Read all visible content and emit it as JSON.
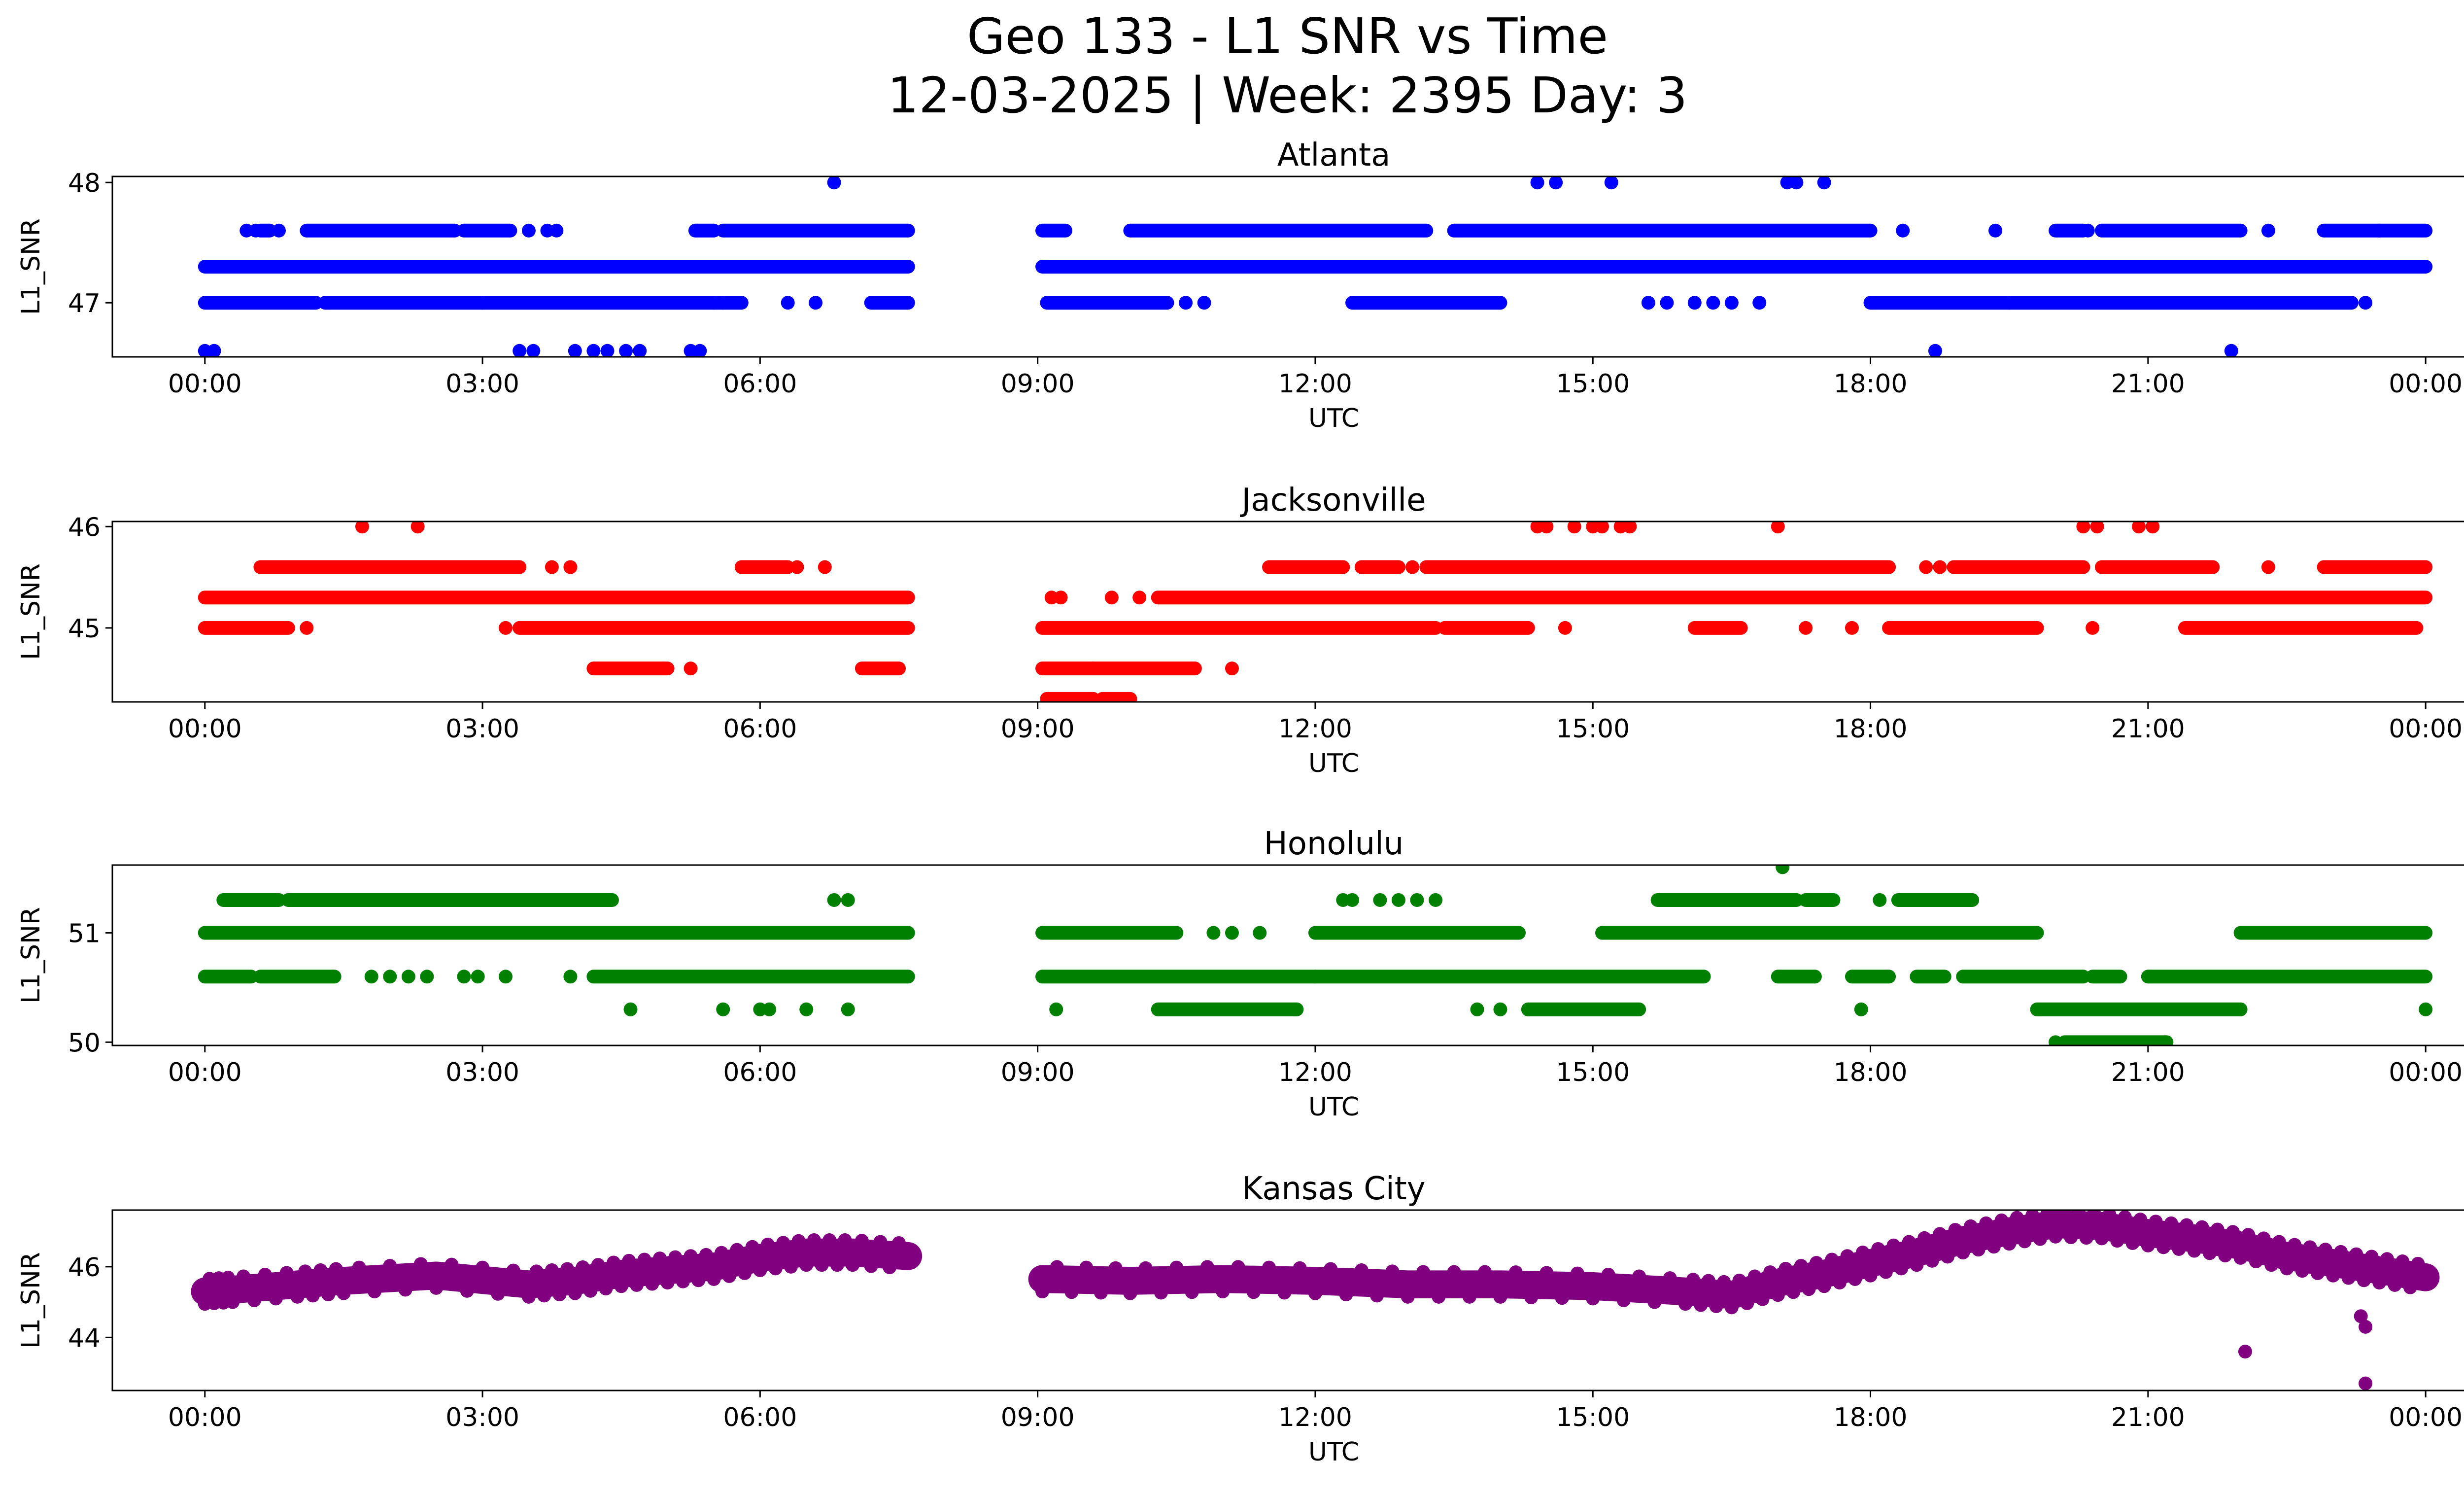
{
  "title_line1": "Geo 133 - L1 SNR vs Time",
  "title_line2": "12-03-2025 | Week: 2395 Day: 3",
  "x_axis": {
    "label": "UTC",
    "range_hours": [
      -1.0,
      25.4
    ],
    "ticks": [
      {
        "h": 0,
        "label": "00:00"
      },
      {
        "h": 3,
        "label": "03:00"
      },
      {
        "h": 6,
        "label": "06:00"
      },
      {
        "h": 9,
        "label": "09:00"
      },
      {
        "h": 12,
        "label": "12:00"
      },
      {
        "h": 15,
        "label": "15:00"
      },
      {
        "h": 18,
        "label": "18:00"
      },
      {
        "h": 21,
        "label": "21:00"
      },
      {
        "h": 24,
        "label": "00:00"
      }
    ]
  },
  "chart_data": [
    {
      "type": "scatter",
      "title": "Atlanta",
      "xlabel": "UTC",
      "ylabel": "L1_SNR",
      "color": "#0000ff",
      "ylim": [
        46.55,
        48.05
      ],
      "yticks": [
        47,
        48
      ],
      "spans": [
        {
          "level": 47.3,
          "ranges": [
            [
              0.0,
              7.6
            ],
            [
              9.05,
              24.0
            ]
          ]
        },
        {
          "level": 47.0,
          "ranges": [
            [
              0.0,
              1.2
            ],
            [
              1.3,
              3.0
            ],
            [
              3.0,
              5.5
            ],
            [
              5.5,
              5.8
            ],
            [
              7.2,
              7.6
            ],
            [
              9.1,
              10.4
            ],
            [
              12.4,
              14.0
            ],
            [
              18.0,
              19.5
            ],
            [
              19.5,
              23.2
            ]
          ]
        },
        {
          "level": 47.6,
          "ranges": [
            [
              0.6,
              0.7
            ],
            [
              1.1,
              2.7
            ],
            [
              2.8,
              3.3
            ],
            [
              5.3,
              5.5
            ],
            [
              5.6,
              7.6
            ],
            [
              9.05,
              9.3
            ],
            [
              10.0,
              13.2
            ],
            [
              13.5,
              18.0
            ],
            [
              20.0,
              20.3
            ],
            [
              20.5,
              22.0
            ],
            [
              22.9,
              23.5
            ],
            [
              23.5,
              24.0
            ]
          ]
        }
      ],
      "points": [
        [
          0.0,
          46.6
        ],
        [
          0.1,
          46.6
        ],
        [
          3.4,
          46.6
        ],
        [
          3.55,
          46.6
        ],
        [
          4.0,
          46.6
        ],
        [
          4.2,
          46.6
        ],
        [
          4.35,
          46.6
        ],
        [
          4.55,
          46.6
        ],
        [
          4.7,
          46.6
        ],
        [
          5.25,
          46.6
        ],
        [
          5.35,
          46.6
        ],
        [
          18.7,
          46.6
        ],
        [
          21.9,
          46.6
        ],
        [
          6.8,
          48.0
        ],
        [
          14.4,
          48.0
        ],
        [
          14.6,
          48.0
        ],
        [
          15.2,
          48.0
        ],
        [
          17.1,
          48.0
        ],
        [
          17.2,
          48.0
        ],
        [
          17.5,
          48.0
        ],
        [
          5.6,
          47.0
        ],
        [
          6.3,
          47.0
        ],
        [
          6.6,
          47.0
        ],
        [
          10.6,
          47.0
        ],
        [
          10.8,
          47.0
        ],
        [
          15.6,
          47.0
        ],
        [
          15.8,
          47.0
        ],
        [
          16.1,
          47.0
        ],
        [
          16.3,
          47.0
        ],
        [
          16.5,
          47.0
        ],
        [
          16.8,
          47.0
        ],
        [
          23.35,
          47.0
        ],
        [
          0.45,
          47.6
        ],
        [
          0.55,
          47.6
        ],
        [
          0.8,
          47.6
        ],
        [
          3.5,
          47.6
        ],
        [
          3.7,
          47.6
        ],
        [
          3.8,
          47.6
        ],
        [
          18.35,
          47.6
        ],
        [
          19.35,
          47.6
        ],
        [
          20.35,
          47.6
        ],
        [
          22.3,
          47.6
        ]
      ]
    },
    {
      "type": "scatter",
      "title": "Jacksonville",
      "xlabel": "UTC",
      "ylabel": "L1_SNR",
      "color": "#ff0000",
      "ylim": [
        44.27,
        46.05
      ],
      "yticks": [
        45,
        46
      ],
      "spans": [
        {
          "level": 45.3,
          "ranges": [
            [
              0.0,
              7.6
            ],
            [
              10.3,
              24.0
            ]
          ]
        },
        {
          "level": 45.0,
          "ranges": [
            [
              0.0,
              0.9
            ],
            [
              3.4,
              7.6
            ],
            [
              9.05,
              13.3
            ],
            [
              13.4,
              14.3
            ],
            [
              16.1,
              16.6
            ],
            [
              18.2,
              19.8
            ],
            [
              21.4,
              23.9
            ]
          ]
        },
        {
          "level": 45.6,
          "ranges": [
            [
              0.6,
              3.4
            ],
            [
              5.8,
              6.3
            ],
            [
              11.5,
              12.3
            ],
            [
              12.5,
              12.9
            ],
            [
              13.2,
              18.2
            ],
            [
              18.9,
              20.3
            ],
            [
              20.5,
              21.7
            ],
            [
              22.9,
              24.0
            ]
          ]
        },
        {
          "level": 44.6,
          "ranges": [
            [
              4.2,
              5.0
            ],
            [
              7.1,
              7.5
            ],
            [
              9.05,
              9.6
            ],
            [
              9.6,
              10.7
            ]
          ]
        },
        {
          "level": 44.3,
          "ranges": [
            [
              9.1,
              9.6
            ],
            [
              9.7,
              10.0
            ]
          ]
        }
      ],
      "points": [
        [
          9.15,
          45.3
        ],
        [
          9.25,
          45.3
        ],
        [
          9.8,
          45.3
        ],
        [
          10.1,
          45.3
        ],
        [
          1.1,
          45.0
        ],
        [
          3.25,
          45.0
        ],
        [
          14.7,
          45.0
        ],
        [
          17.3,
          45.0
        ],
        [
          17.8,
          45.0
        ],
        [
          20.4,
          45.0
        ],
        [
          3.75,
          45.6
        ],
        [
          3.95,
          45.6
        ],
        [
          6.4,
          45.6
        ],
        [
          6.7,
          45.6
        ],
        [
          12.8,
          45.6
        ],
        [
          13.05,
          45.6
        ],
        [
          18.6,
          45.6
        ],
        [
          18.75,
          45.6
        ],
        [
          22.3,
          45.6
        ],
        [
          5.25,
          44.6
        ],
        [
          11.1,
          44.6
        ],
        [
          1.7,
          46.0
        ],
        [
          2.3,
          46.0
        ],
        [
          14.4,
          46.0
        ],
        [
          14.5,
          46.0
        ],
        [
          14.8,
          46.0
        ],
        [
          15.0,
          46.0
        ],
        [
          15.1,
          46.0
        ],
        [
          15.3,
          46.0
        ],
        [
          15.4,
          46.0
        ],
        [
          17.0,
          46.0
        ],
        [
          20.3,
          46.0
        ],
        [
          20.45,
          46.0
        ],
        [
          20.9,
          46.0
        ],
        [
          21.05,
          46.0
        ]
      ]
    },
    {
      "type": "scatter",
      "title": "Honolulu",
      "xlabel": "UTC",
      "ylabel": "L1_SNR",
      "color": "#008000",
      "ylim": [
        49.97,
        51.62
      ],
      "yticks": [
        50,
        51
      ],
      "spans": [
        {
          "level": 51.0,
          "ranges": [
            [
              0.0,
              7.6
            ],
            [
              9.05,
              10.5
            ],
            [
              12.0,
              14.2
            ],
            [
              15.1,
              19.8
            ],
            [
              22.0,
              24.0
            ]
          ]
        },
        {
          "level": 50.6,
          "ranges": [
            [
              0.0,
              0.5
            ],
            [
              0.6,
              1.4
            ],
            [
              4.2,
              7.6
            ],
            [
              9.05,
              12.0
            ],
            [
              12.0,
              16.2
            ],
            [
              17.0,
              17.4
            ],
            [
              17.8,
              18.2
            ],
            [
              18.5,
              18.8
            ],
            [
              19.0,
              20.3
            ],
            [
              20.4,
              20.7
            ],
            [
              21.0,
              24.0
            ]
          ]
        },
        {
          "level": 51.3,
          "ranges": [
            [
              0.2,
              0.8
            ],
            [
              0.9,
              4.4
            ],
            [
              15.7,
              17.2
            ],
            [
              17.3,
              17.6
            ],
            [
              18.3,
              19.1
            ]
          ]
        },
        {
          "level": 50.3,
          "ranges": [
            [
              10.3,
              11.8
            ],
            [
              14.3,
              15.5
            ],
            [
              19.8,
              22.0
            ]
          ]
        },
        {
          "level": 50.0,
          "ranges": [
            [
              20.1,
              21.2
            ]
          ]
        }
      ],
      "points": [
        [
          10.9,
          51.0
        ],
        [
          11.1,
          51.0
        ],
        [
          11.4,
          51.0
        ],
        [
          13.2,
          51.0
        ],
        [
          1.8,
          50.6
        ],
        [
          2.0,
          50.6
        ],
        [
          2.2,
          50.6
        ],
        [
          2.4,
          50.6
        ],
        [
          2.8,
          50.6
        ],
        [
          2.95,
          50.6
        ],
        [
          3.25,
          50.6
        ],
        [
          3.95,
          50.6
        ],
        [
          0.3,
          51.3
        ],
        [
          6.8,
          51.3
        ],
        [
          6.95,
          51.3
        ],
        [
          12.3,
          51.3
        ],
        [
          12.4,
          51.3
        ],
        [
          12.7,
          51.3
        ],
        [
          12.9,
          51.3
        ],
        [
          13.1,
          51.3
        ],
        [
          13.3,
          51.3
        ],
        [
          18.1,
          51.3
        ],
        [
          4.6,
          50.3
        ],
        [
          5.6,
          50.3
        ],
        [
          6.0,
          50.3
        ],
        [
          6.1,
          50.3
        ],
        [
          6.5,
          50.3
        ],
        [
          6.95,
          50.3
        ],
        [
          9.2,
          50.3
        ],
        [
          13.75,
          50.3
        ],
        [
          14.0,
          50.3
        ],
        [
          17.9,
          50.3
        ],
        [
          24.0,
          50.3
        ],
        [
          20.0,
          50.0
        ],
        [
          17.05,
          51.6
        ]
      ]
    },
    {
      "type": "scatter",
      "title": "Kansas City",
      "xlabel": "UTC",
      "ylabel": "L1_SNR",
      "color": "#800080",
      "ylim": [
        42.5,
        47.6
      ],
      "yticks": [
        44,
        46
      ],
      "trend": [
        [
          0.0,
          45.3
        ],
        [
          0.3,
          45.35
        ],
        [
          1.0,
          45.5
        ],
        [
          1.5,
          45.6
        ],
        [
          2.5,
          45.75
        ],
        [
          3.5,
          45.5
        ],
        [
          4.0,
          45.6
        ],
        [
          4.5,
          45.8
        ],
        [
          5.0,
          45.9
        ],
        [
          5.5,
          46.0
        ],
        [
          6.0,
          46.25
        ],
        [
          6.5,
          46.4
        ],
        [
          7.0,
          46.4
        ],
        [
          7.6,
          46.3
        ],
        [
          9.05,
          45.65
        ],
        [
          10.0,
          45.6
        ],
        [
          11.0,
          45.65
        ],
        [
          12.0,
          45.6
        ],
        [
          13.0,
          45.5
        ],
        [
          14.0,
          45.5
        ],
        [
          15.0,
          45.45
        ],
        [
          16.0,
          45.3
        ],
        [
          16.5,
          45.2
        ],
        [
          17.0,
          45.55
        ],
        [
          17.5,
          45.8
        ],
        [
          18.0,
          46.1
        ],
        [
          18.5,
          46.4
        ],
        [
          19.0,
          46.75
        ],
        [
          19.5,
          47.0
        ],
        [
          20.0,
          47.2
        ],
        [
          20.5,
          47.15
        ],
        [
          21.0,
          46.95
        ],
        [
          21.5,
          46.8
        ],
        [
          22.0,
          46.6
        ],
        [
          22.5,
          46.3
        ],
        [
          23.0,
          46.1
        ],
        [
          23.5,
          45.9
        ],
        [
          24.0,
          45.7
        ]
      ],
      "band": 0.4,
      "points": [
        [
          22.05,
          43.6
        ],
        [
          23.35,
          44.3
        ],
        [
          23.3,
          44.6
        ],
        [
          23.35,
          42.7
        ]
      ]
    }
  ]
}
